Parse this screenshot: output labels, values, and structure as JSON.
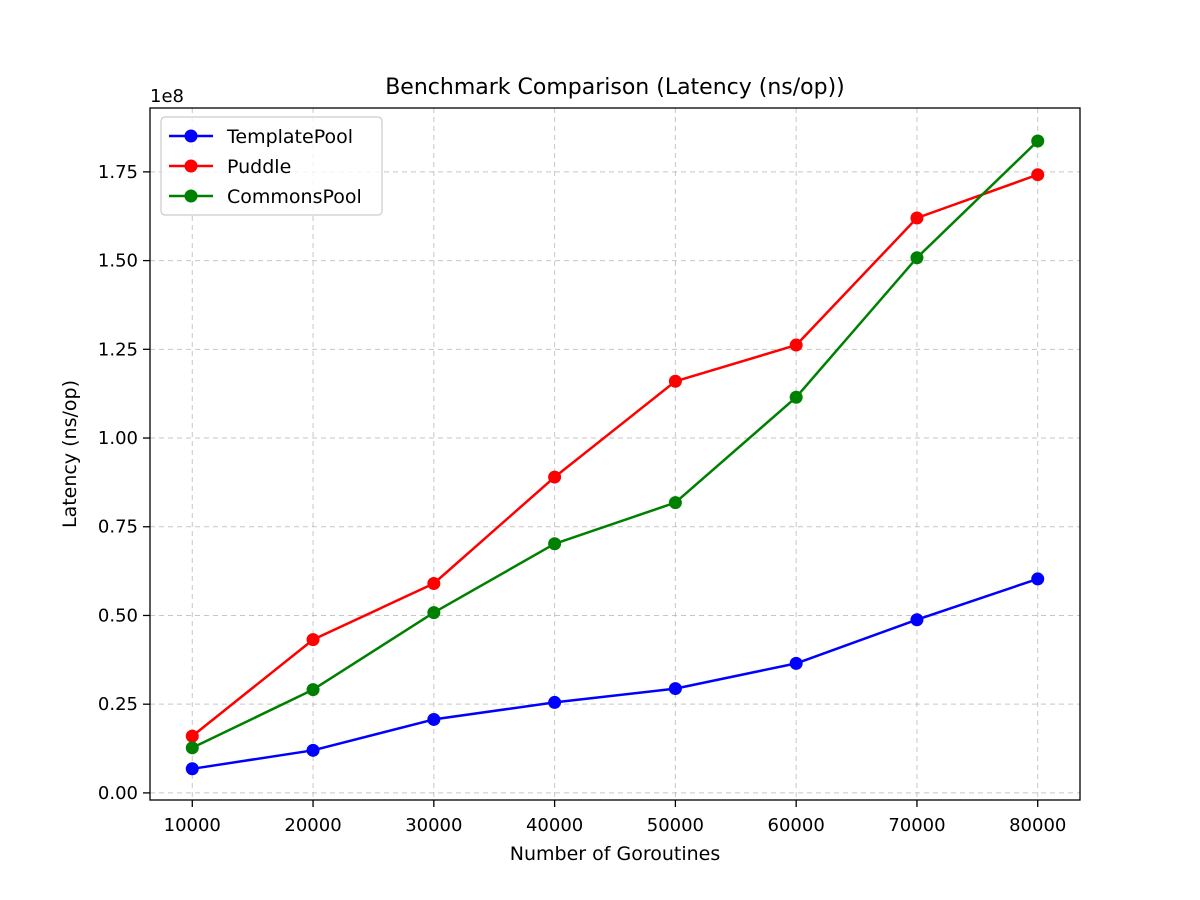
{
  "chart_data": {
    "type": "line",
    "title": "Benchmark Comparison (Latency (ns/op))",
    "xlabel": "Number of Goroutines",
    "ylabel": "Latency (ns/op)",
    "y_offset_label": "1e8",
    "x": [
      10000,
      20000,
      30000,
      40000,
      50000,
      60000,
      70000,
      80000
    ],
    "x_ticks": [
      "10000",
      "20000",
      "30000",
      "40000",
      "50000",
      "60000",
      "70000",
      "80000"
    ],
    "y_ticks": [
      0,
      0.25,
      0.5,
      0.75,
      1.0,
      1.25,
      1.5,
      1.75
    ],
    "y_tick_labels": [
      "0.00",
      "0.25",
      "0.50",
      "0.75",
      "1.00",
      "1.25",
      "1.50",
      "1.75"
    ],
    "xlim": [
      6500,
      83500
    ],
    "ylim": [
      -0.02,
      1.93
    ],
    "y_scale": 100000000,
    "grid": true,
    "legend_position": "top-left",
    "series": [
      {
        "name": "TemplatePool",
        "color": "#0000ff",
        "values": [
          6800000,
          12000000,
          20700000,
          25500000,
          29400000,
          36500000,
          48800000,
          60300000
        ]
      },
      {
        "name": "Puddle",
        "color": "#ff0000",
        "values": [
          16000000,
          43200000,
          59000000,
          89000000,
          116000000,
          126200000,
          162000000,
          174200000
        ]
      },
      {
        "name": "CommonsPool",
        "color": "#008000",
        "values": [
          12700000,
          29100000,
          50800000,
          70200000,
          81800000,
          111500000,
          150800000,
          183700000
        ]
      }
    ]
  }
}
